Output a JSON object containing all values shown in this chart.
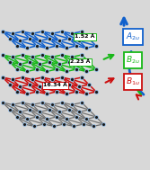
{
  "bg_color": "#d8d8d8",
  "dist1": "1.52 Å",
  "dist2": "2.23 Å",
  "dist3": "16.34 Å",
  "color_blue": "#1060cc",
  "color_green": "#18b818",
  "color_red": "#cc1010",
  "color_gray": "#707070",
  "color_black": "#000000",
  "color_lightblue": "#90b8e0",
  "color_darknode": "#1a1a1a",
  "label_box_bg": "#ffffff"
}
